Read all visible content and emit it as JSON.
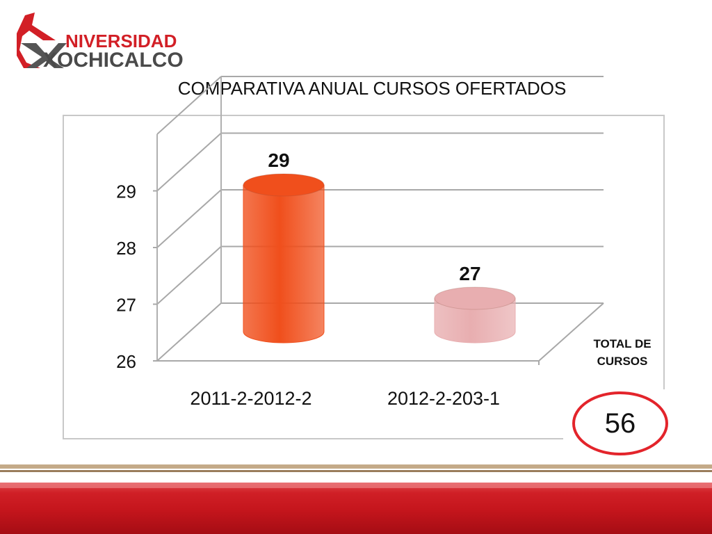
{
  "logo": {
    "line1": "NIVERSIDAD",
    "line2": "XOCHICALCO",
    "colors": {
      "red": "#d21f26",
      "grey": "#4a4a4a"
    }
  },
  "total": {
    "label_line1": "TOTAL DE",
    "label_line2": "CURSOS",
    "value": "56",
    "ring_color": "#e3242b"
  },
  "chart_data": {
    "type": "bar",
    "style": "3d-cylinder",
    "title": "COMPARATIVA ANUAL CURSOS OFERTADOS",
    "categories": [
      "2011-2-2012-2",
      "2012-2-203-1"
    ],
    "values": [
      29,
      27
    ],
    "data_labels": [
      "29",
      "27"
    ],
    "bar_colors": [
      "#f04f1c",
      "#e8aeb0"
    ],
    "y_ticks": [
      "26",
      "27",
      "28",
      "29"
    ],
    "ylim": [
      26,
      30
    ],
    "grid": true,
    "legend": "none",
    "xlabel": "",
    "ylabel": ""
  }
}
